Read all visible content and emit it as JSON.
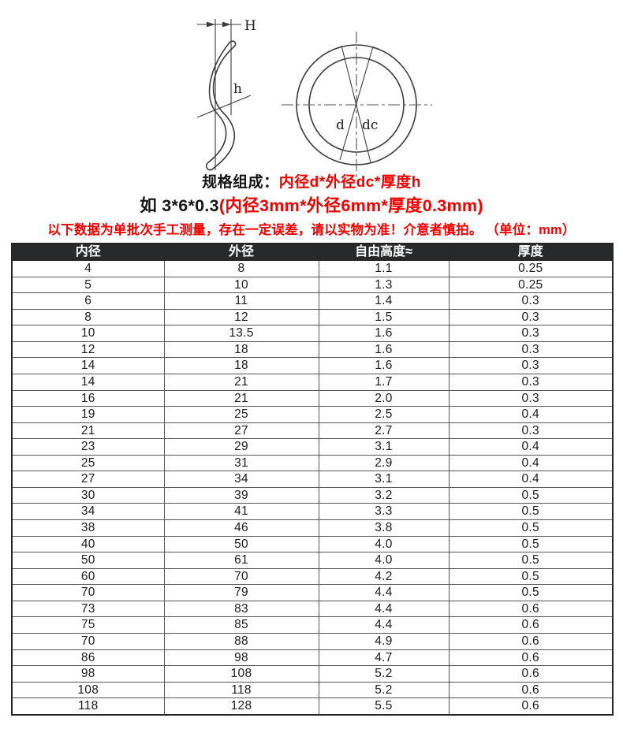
{
  "diagram": {
    "stroke_color": "#3c3c3c",
    "labels": {
      "height_total": "H",
      "height_wave": "h",
      "inner_diameter": "d",
      "outer_diameter": "dc"
    }
  },
  "title_block": {
    "line1_prefix": "规格组成：",
    "line1_highlight": "内径d*外径dc*厚度h",
    "line2_prefix": "如 3*6*0.3",
    "line2_highlight": "(内径3mm*外径6mm*厚度0.3mm)",
    "note": "以下数据为单批次手工测量，存在一定误差，请以实物为准！介意者慎拍。 （单位：mm）",
    "highlight_color": "#f10000"
  },
  "table": {
    "headers": [
      "内径",
      "外径",
      "自由高度≈",
      "厚度"
    ],
    "header_bg": "#27292b",
    "header_text_color": "#ffffff",
    "rows": [
      [
        "4",
        "8",
        "1.1",
        "0.25"
      ],
      [
        "5",
        "10",
        "1.3",
        "0.25"
      ],
      [
        "6",
        "11",
        "1.4",
        "0.3"
      ],
      [
        "8",
        "12",
        "1.5",
        "0.3"
      ],
      [
        "10",
        "13.5",
        "1.6",
        "0.3"
      ],
      [
        "12",
        "18",
        "1.6",
        "0.3"
      ],
      [
        "14",
        "18",
        "1.6",
        "0.3"
      ],
      [
        "14",
        "21",
        "1.7",
        "0.3"
      ],
      [
        "16",
        "21",
        "2.0",
        "0.3"
      ],
      [
        "19",
        "25",
        "2.5",
        "0.4"
      ],
      [
        "21",
        "27",
        "2.7",
        "0.3"
      ],
      [
        "23",
        "29",
        "3.1",
        "0.4"
      ],
      [
        "25",
        "31",
        "2.9",
        "0.4"
      ],
      [
        "27",
        "34",
        "3.1",
        "0.4"
      ],
      [
        "30",
        "39",
        "3.2",
        "0.5"
      ],
      [
        "34",
        "41",
        "3.3",
        "0.5"
      ],
      [
        "38",
        "46",
        "3.8",
        "0.5"
      ],
      [
        "40",
        "50",
        "4.0",
        "0.5"
      ],
      [
        "50",
        "61",
        "4.0",
        "0.5"
      ],
      [
        "60",
        "70",
        "4.2",
        "0.5"
      ],
      [
        "70",
        "79",
        "4.4",
        "0.5"
      ],
      [
        "73",
        "83",
        "4.4",
        "0.6"
      ],
      [
        "75",
        "85",
        "4.4",
        "0.6"
      ],
      [
        "70",
        "88",
        "4.9",
        "0.6"
      ],
      [
        "86",
        "98",
        "4.7",
        "0.6"
      ],
      [
        "98",
        "108",
        "5.2",
        "0.6"
      ],
      [
        "108",
        "118",
        "5.2",
        "0.6"
      ],
      [
        "118",
        "128",
        "5.5",
        "0.6"
      ]
    ]
  }
}
